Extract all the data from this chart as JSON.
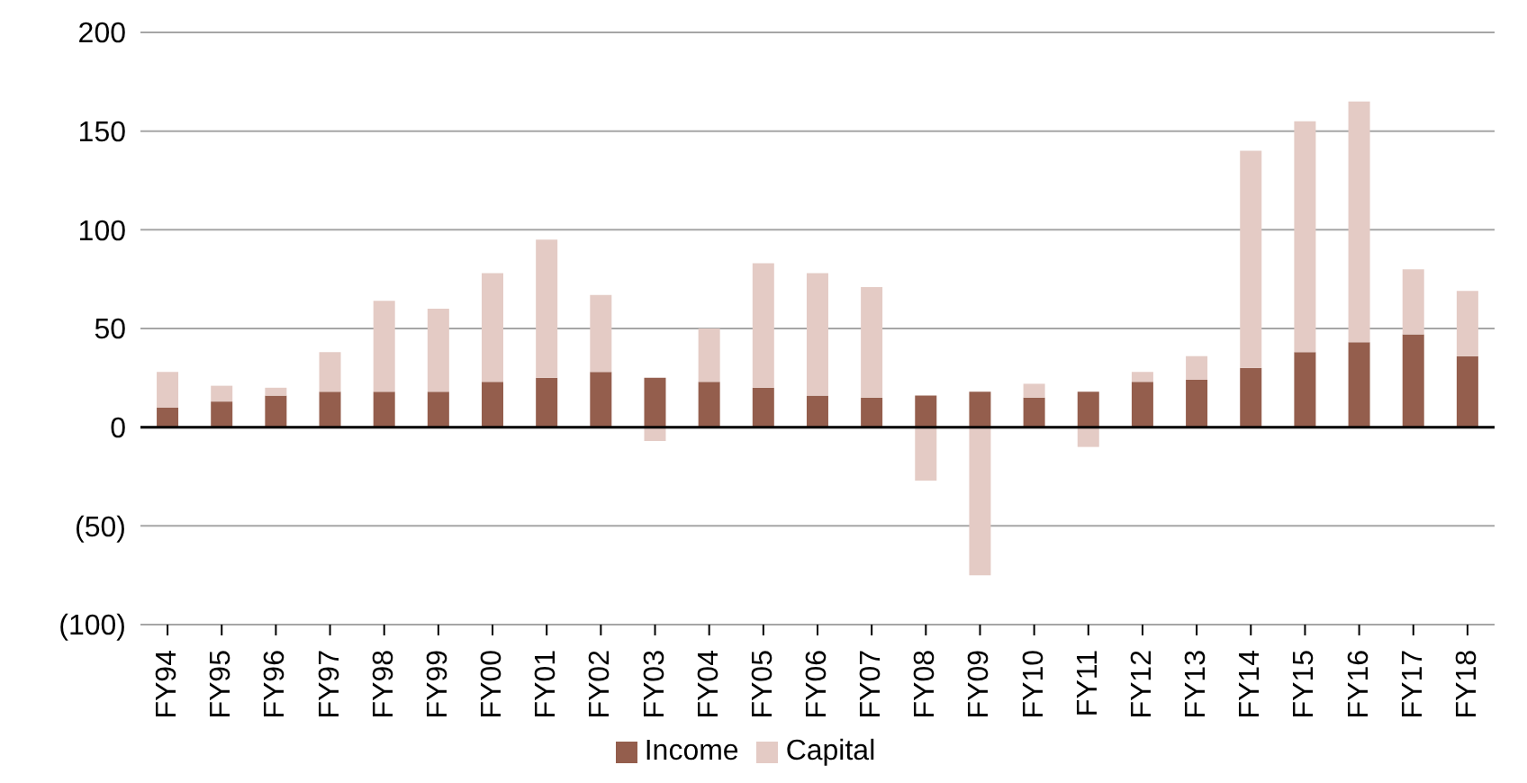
{
  "chart_data": {
    "type": "bar",
    "stacked": true,
    "categories": [
      "FY94",
      "FY95",
      "FY96",
      "FY97",
      "FY98",
      "FY99",
      "FY00",
      "FY01",
      "FY02",
      "FY03",
      "FY04",
      "FY05",
      "FY06",
      "FY07",
      "FY08",
      "FY09",
      "FY10",
      "FY11",
      "FY12",
      "FY13",
      "FY14",
      "FY15",
      "FY16",
      "FY17",
      "FY18"
    ],
    "series": [
      {
        "name": "Income",
        "color": "#945e4d",
        "values": [
          10,
          13,
          16,
          18,
          18,
          18,
          23,
          25,
          28,
          25,
          23,
          20,
          16,
          15,
          16,
          18,
          15,
          18,
          23,
          24,
          30,
          38,
          43,
          47,
          36
        ]
      },
      {
        "name": "Capital",
        "color": "#e4cbc5",
        "values": [
          18,
          8,
          4,
          20,
          46,
          42,
          55,
          70,
          39,
          -7,
          27,
          63,
          62,
          56,
          -27,
          -75,
          7,
          -10,
          5,
          12,
          110,
          117,
          122,
          33,
          33
        ]
      }
    ],
    "ylim": [
      -100,
      200
    ],
    "yticks": [
      {
        "value": -100,
        "label": "(100)"
      },
      {
        "value": -50,
        "label": "(50)"
      },
      0,
      50,
      100,
      150,
      200
    ],
    "grid": "y",
    "legend": "bottom"
  }
}
